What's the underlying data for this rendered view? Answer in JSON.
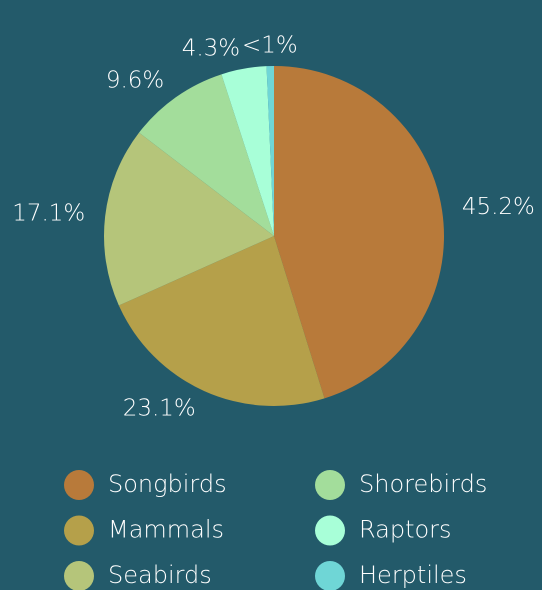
{
  "chart_data": {
    "type": "pie",
    "categories": [
      "Songbirds",
      "Mammals",
      "Seabirds",
      "Shorebirds",
      "Raptors",
      "Herptiles"
    ],
    "values": [
      45.2,
      23.1,
      17.1,
      9.6,
      4.3,
      0.7
    ],
    "value_labels": [
      "45.2%",
      "23.1%",
      "17.1%",
      "9.6%",
      "4.3%",
      "<1%"
    ],
    "colors": [
      "#b87a3a",
      "#b5a04a",
      "#b5c57a",
      "#a3dd9b",
      "#a8ffd8",
      "#6fd6d6"
    ],
    "legend": "bottom"
  }
}
